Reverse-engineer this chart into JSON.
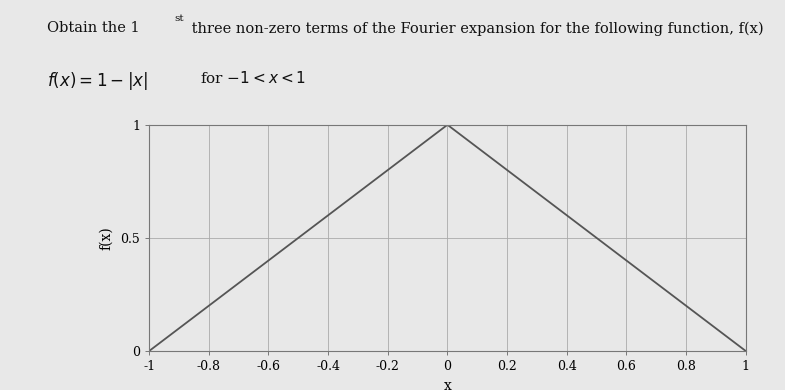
{
  "xlabel": "x",
  "ylabel": "f(x)",
  "xlim": [
    -1,
    1
  ],
  "ylim": [
    0,
    1
  ],
  "xticks": [
    -1,
    -0.8,
    -0.6,
    -0.4,
    -0.2,
    0,
    0.2,
    0.4,
    0.6,
    0.8,
    1
  ],
  "yticks": [
    0,
    0.5,
    1
  ],
  "x_data": [
    -1,
    0,
    1
  ],
  "y_data": [
    0,
    1,
    0
  ],
  "line_color": "#555555",
  "line_width": 1.3,
  "grid_color": "#aaaaaa",
  "grid_linewidth": 0.6,
  "background_color": "#e8e8e8",
  "plot_bg_color": "#e8e8e8",
  "text_color": "#111111",
  "title_fontsize": 10.5,
  "formula_fontsize": 12,
  "axis_label_fontsize": 10,
  "tick_fontsize": 9
}
